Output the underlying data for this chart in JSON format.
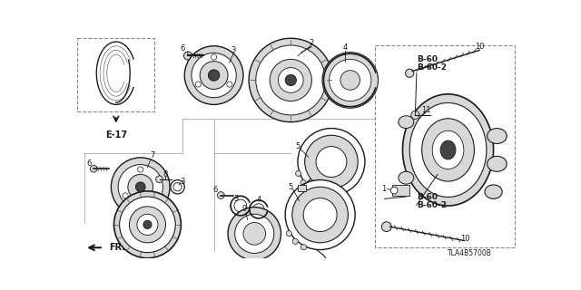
{
  "bg_color": "#ffffff",
  "line_color": "#1a1a1a",
  "gray_light": "#d8d8d8",
  "gray_mid": "#999999",
  "gray_dark": "#444444",
  "dashed_color": "#888888",
  "fig_width": 6.4,
  "fig_height": 3.2,
  "dpi": 100,
  "doc_id": "TLA4B5700B",
  "ref_label": "E-17",
  "fr_label": "FR."
}
